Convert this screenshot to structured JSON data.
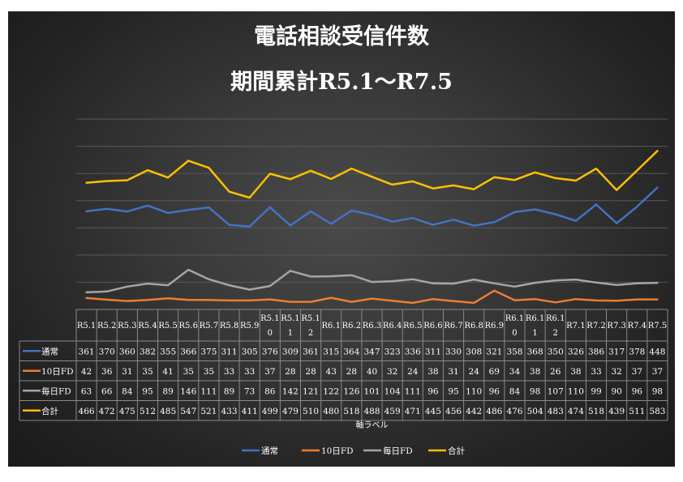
{
  "chart_data": {
    "type": "line",
    "title": "電話相談受信件数",
    "subtitle": "期間累計R5.1～R7.5",
    "categories": [
      "R5.1",
      "R5.2",
      "R5.3",
      "R5.4",
      "R5.5",
      "R5.6",
      "R5.7",
      "R5.8",
      "R5.9",
      "R5.10",
      "R5.11",
      "R5.12",
      "R6.1",
      "R6.2",
      "R6.3",
      "R6.4",
      "R6.5",
      "R6.6",
      "R6.7",
      "R6.8",
      "R6.9",
      "R6.10",
      "R6.11",
      "R6.12",
      "R7.1",
      "R7.2",
      "R7.3",
      "R7.4",
      "R7.5"
    ],
    "xlabel": "軸ラベル",
    "ylabel": "",
    "ylim": [
      0,
      700
    ],
    "grid": true,
    "legend": "bottom",
    "series": [
      {
        "name": "通常",
        "color": "#4472c4",
        "values": [
          361,
          370,
          360,
          382,
          355,
          366,
          375,
          311,
          305,
          376,
          309,
          361,
          315,
          364,
          347,
          323,
          336,
          311,
          330,
          308,
          321,
          358,
          368,
          350,
          326,
          386,
          317,
          378,
          448
        ]
      },
      {
        "name": "10日FD",
        "color": "#ed7d31",
        "values": [
          42,
          36,
          31,
          35,
          41,
          35,
          35,
          33,
          33,
          37,
          28,
          28,
          43,
          28,
          40,
          32,
          24,
          38,
          31,
          24,
          69,
          34,
          38,
          26,
          38,
          33,
          32,
          37,
          37
        ]
      },
      {
        "name": "毎日FD",
        "color": "#a5a5a5",
        "values": [
          63,
          66,
          84,
          95,
          89,
          146,
          111,
          89,
          73,
          86,
          142,
          121,
          122,
          126,
          101,
          104,
          111,
          96,
          95,
          110,
          96,
          84,
          98,
          107,
          110,
          99,
          90,
          96,
          98
        ]
      },
      {
        "name": "合計",
        "color": "#ffc000",
        "values": [
          466,
          472,
          475,
          512,
          485,
          547,
          521,
          433,
          411,
          499,
          479,
          510,
          480,
          518,
          488,
          459,
          471,
          445,
          456,
          442,
          486,
          476,
          504,
          483,
          474,
          518,
          439,
          511,
          583
        ]
      }
    ]
  }
}
